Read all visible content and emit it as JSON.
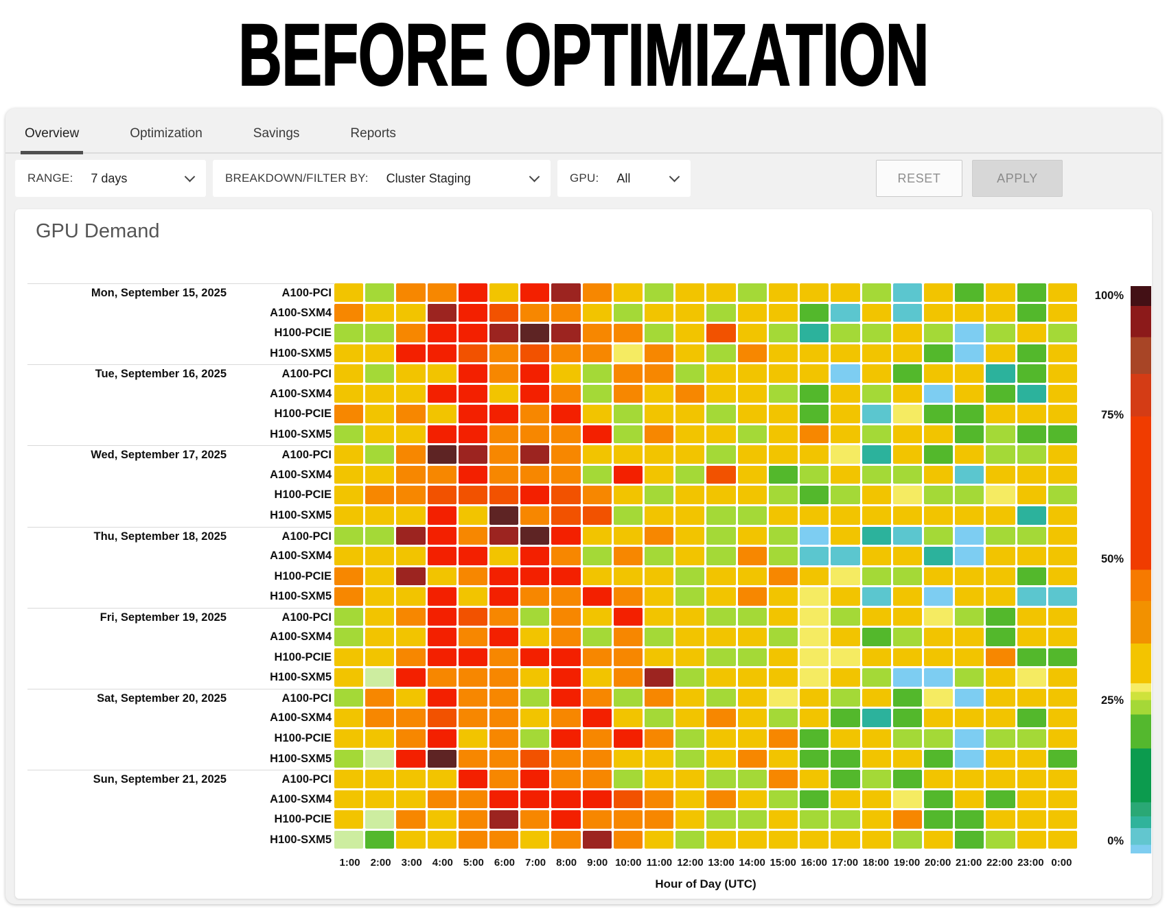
{
  "title": "BEFORE OPTIMIZATION",
  "tabs": [
    {
      "label": "Overview",
      "active": true
    },
    {
      "label": "Optimization",
      "active": false
    },
    {
      "label": "Savings",
      "active": false
    },
    {
      "label": "Reports",
      "active": false
    }
  ],
  "filters": {
    "range_label": "RANGE:",
    "range_value": "7 days",
    "breakdown_label": "BREAKDOWN/FILTER BY:",
    "breakdown_value": "Cluster Staging",
    "gpu_label": "GPU:",
    "gpu_value": "All",
    "reset_label": "RESET",
    "apply_label": "APPLY"
  },
  "chart_data": {
    "type": "heatmap",
    "title": "GPU Demand",
    "xlabel": "Hour of Day (UTC)",
    "x_ticks": [
      "1:00",
      "2:00",
      "3:00",
      "4:00",
      "5:00",
      "6:00",
      "7:00",
      "8:00",
      "9:00",
      "10:00",
      "11:00",
      "12:00",
      "13:00",
      "14:00",
      "15:00",
      "16:00",
      "17:00",
      "18:00",
      "19:00",
      "20:00",
      "21:00",
      "22:00",
      "23:00",
      "0:00"
    ],
    "gpus": [
      "A100-PCI",
      "A100-SXM4",
      "H100-PCIE",
      "H100-SXM5"
    ],
    "legend": {
      "labels": [
        "100%",
        "75%",
        "50%",
        "25%",
        "0%"
      ],
      "position": "right",
      "min": 0,
      "max": 100,
      "unit": "% utilization"
    },
    "palette": {
      "X": {
        "name": "darkest-maroon",
        "color": "#5e2424",
        "approx_pct": 98
      },
      "M": {
        "name": "maroon",
        "color": "#9c2420",
        "approx_pct": 93
      },
      "R": {
        "name": "red",
        "color": "#f32000",
        "approx_pct": 65
      },
      "V": {
        "name": "red-orange",
        "color": "#f25200",
        "approx_pct": 53
      },
      "O": {
        "name": "orange",
        "color": "#f78700",
        "approx_pct": 44
      },
      "Y": {
        "name": "gold",
        "color": "#f2c400",
        "approx_pct": 33
      },
      "P": {
        "name": "pale-yellow",
        "color": "#f5eb62",
        "approx_pct": 29
      },
      "N": {
        "name": "pale-green",
        "color": "#cdeda0",
        "approx_pct": 27
      },
      "G": {
        "name": "light-green",
        "color": "#a4d937",
        "approx_pct": 25
      },
      "E": {
        "name": "green",
        "color": "#53b82c",
        "approx_pct": 21
      },
      "T": {
        "name": "teal",
        "color": "#2cb29c",
        "approx_pct": 6
      },
      "U": {
        "name": "cyan",
        "color": "#5bc6cf",
        "approx_pct": 4
      },
      "C": {
        "name": "light-blue",
        "color": "#7dcdf2",
        "approx_pct": 1
      }
    },
    "groups": [
      {
        "day": "Mon, September 15, 2025",
        "rows": [
          {
            "gpu": "A100-PCI",
            "codes": "YGOORYRMOYGYYGYYYGUYEYEY"
          },
          {
            "gpu": "A100-SXM4",
            "codes": "OYYMRVOOYGYYGYYEUYUYYYEY"
          },
          {
            "gpu": "H100-PCIE",
            "codes": "GGORRMXMOOGYVYGTGGYGCGYG"
          },
          {
            "gpu": "H100-SXM5",
            "codes": "YYRRVOVOOPOYGOYYYYYECYEY"
          }
        ]
      },
      {
        "day": "Tue, September 16, 2025",
        "rows": [
          {
            "gpu": "A100-PCI",
            "codes": "YGYYRORYGOOGYYYYCYEYYTEY"
          },
          {
            "gpu": "A100-SXM4",
            "codes": "YYYRRYROGOYOYYGEYGYCYETY"
          },
          {
            "gpu": "H100-PCIE",
            "codes": "OYOYRRORYGYYGYYEYUPEEYYY"
          },
          {
            "gpu": "H100-SXM5",
            "codes": "GYYRROOORGOYYGYOYGYYEGEE"
          }
        ]
      },
      {
        "day": "Wed, September 17, 2025",
        "rows": [
          {
            "gpu": "A100-PCI",
            "codes": "YGOXMOMOYYYYGYYYPTYEYGGY"
          },
          {
            "gpu": "A100-SXM4",
            "codes": "YYOOROOOGRYGVYEGYGGYUYYY"
          },
          {
            "gpu": "H100-PCIE",
            "codes": "YOOVVVRVOYGYYYGEGYPGGPYG"
          },
          {
            "gpu": "H100-SXM5",
            "codes": "YYYRYXOVVGYYGGYYYYYYYYTY"
          }
        ]
      },
      {
        "day": "Thu, September 18, 2025",
        "rows": [
          {
            "gpu": "A100-PCI",
            "codes": "GGMROMXRYYOYGYGCYTUGCGGY"
          },
          {
            "gpu": "A100-SXM4",
            "codes": "YYYRRYROGOGYGOGUUYYTCYYY"
          },
          {
            "gpu": "H100-PCIE",
            "codes": "OYMYORRRYYYGYYOYPGGYYYEY"
          },
          {
            "gpu": "H100-SXM5",
            "codes": "OYYRYROOROYGYOYPYUYCYYUU"
          }
        ]
      },
      {
        "day": "Fri, September 19, 2025",
        "rows": [
          {
            "gpu": "A100-PCI",
            "codes": "GYORVOGOYRYYGGYPGYYPGEYY"
          },
          {
            "gpu": "A100-SXM4",
            "codes": "GYYRORYOGOGYYYGPYEGYYEYY"
          },
          {
            "gpu": "H100-PCIE",
            "codes": "YYORRORROOYYGGYPPYYYYOEE"
          },
          {
            "gpu": "H100-SXM5",
            "codes": "YNROOOYRYOMGYYYPYGCCGYPY"
          }
        ]
      },
      {
        "day": "Sat, September 20, 2025",
        "rows": [
          {
            "gpu": "A100-PCI",
            "codes": "GOYROOGROGOYGYPYGYEPCYYY"
          },
          {
            "gpu": "A100-SXM4",
            "codes": "YOOVOOYORYGYOYGYETEYYYEY"
          },
          {
            "gpu": "H100-PCIE",
            "codes": "YYORYOGROROGYYOEYYGGCGGY"
          },
          {
            "gpu": "H100-SXM5",
            "codes": "GNRXOOVOOYYGYOYEEYYECYYE"
          }
        ]
      },
      {
        "day": "Sun, September 21, 2025",
        "rows": [
          {
            "gpu": "A100-PCI",
            "codes": "YYYYROROOGYYGGOYEGEYYYYY"
          },
          {
            "gpu": "A100-SXM4",
            "codes": "YYYOORRRRVOYOYGEYYPEYEYY"
          },
          {
            "gpu": "H100-PCIE",
            "codes": "YNOYOMOROOOYGGYGGYOEEYYY"
          },
          {
            "gpu": "H100-SXM5",
            "codes": "NEYYOOYOMOYGYYYYYYGYEGYY"
          }
        ]
      }
    ]
  }
}
